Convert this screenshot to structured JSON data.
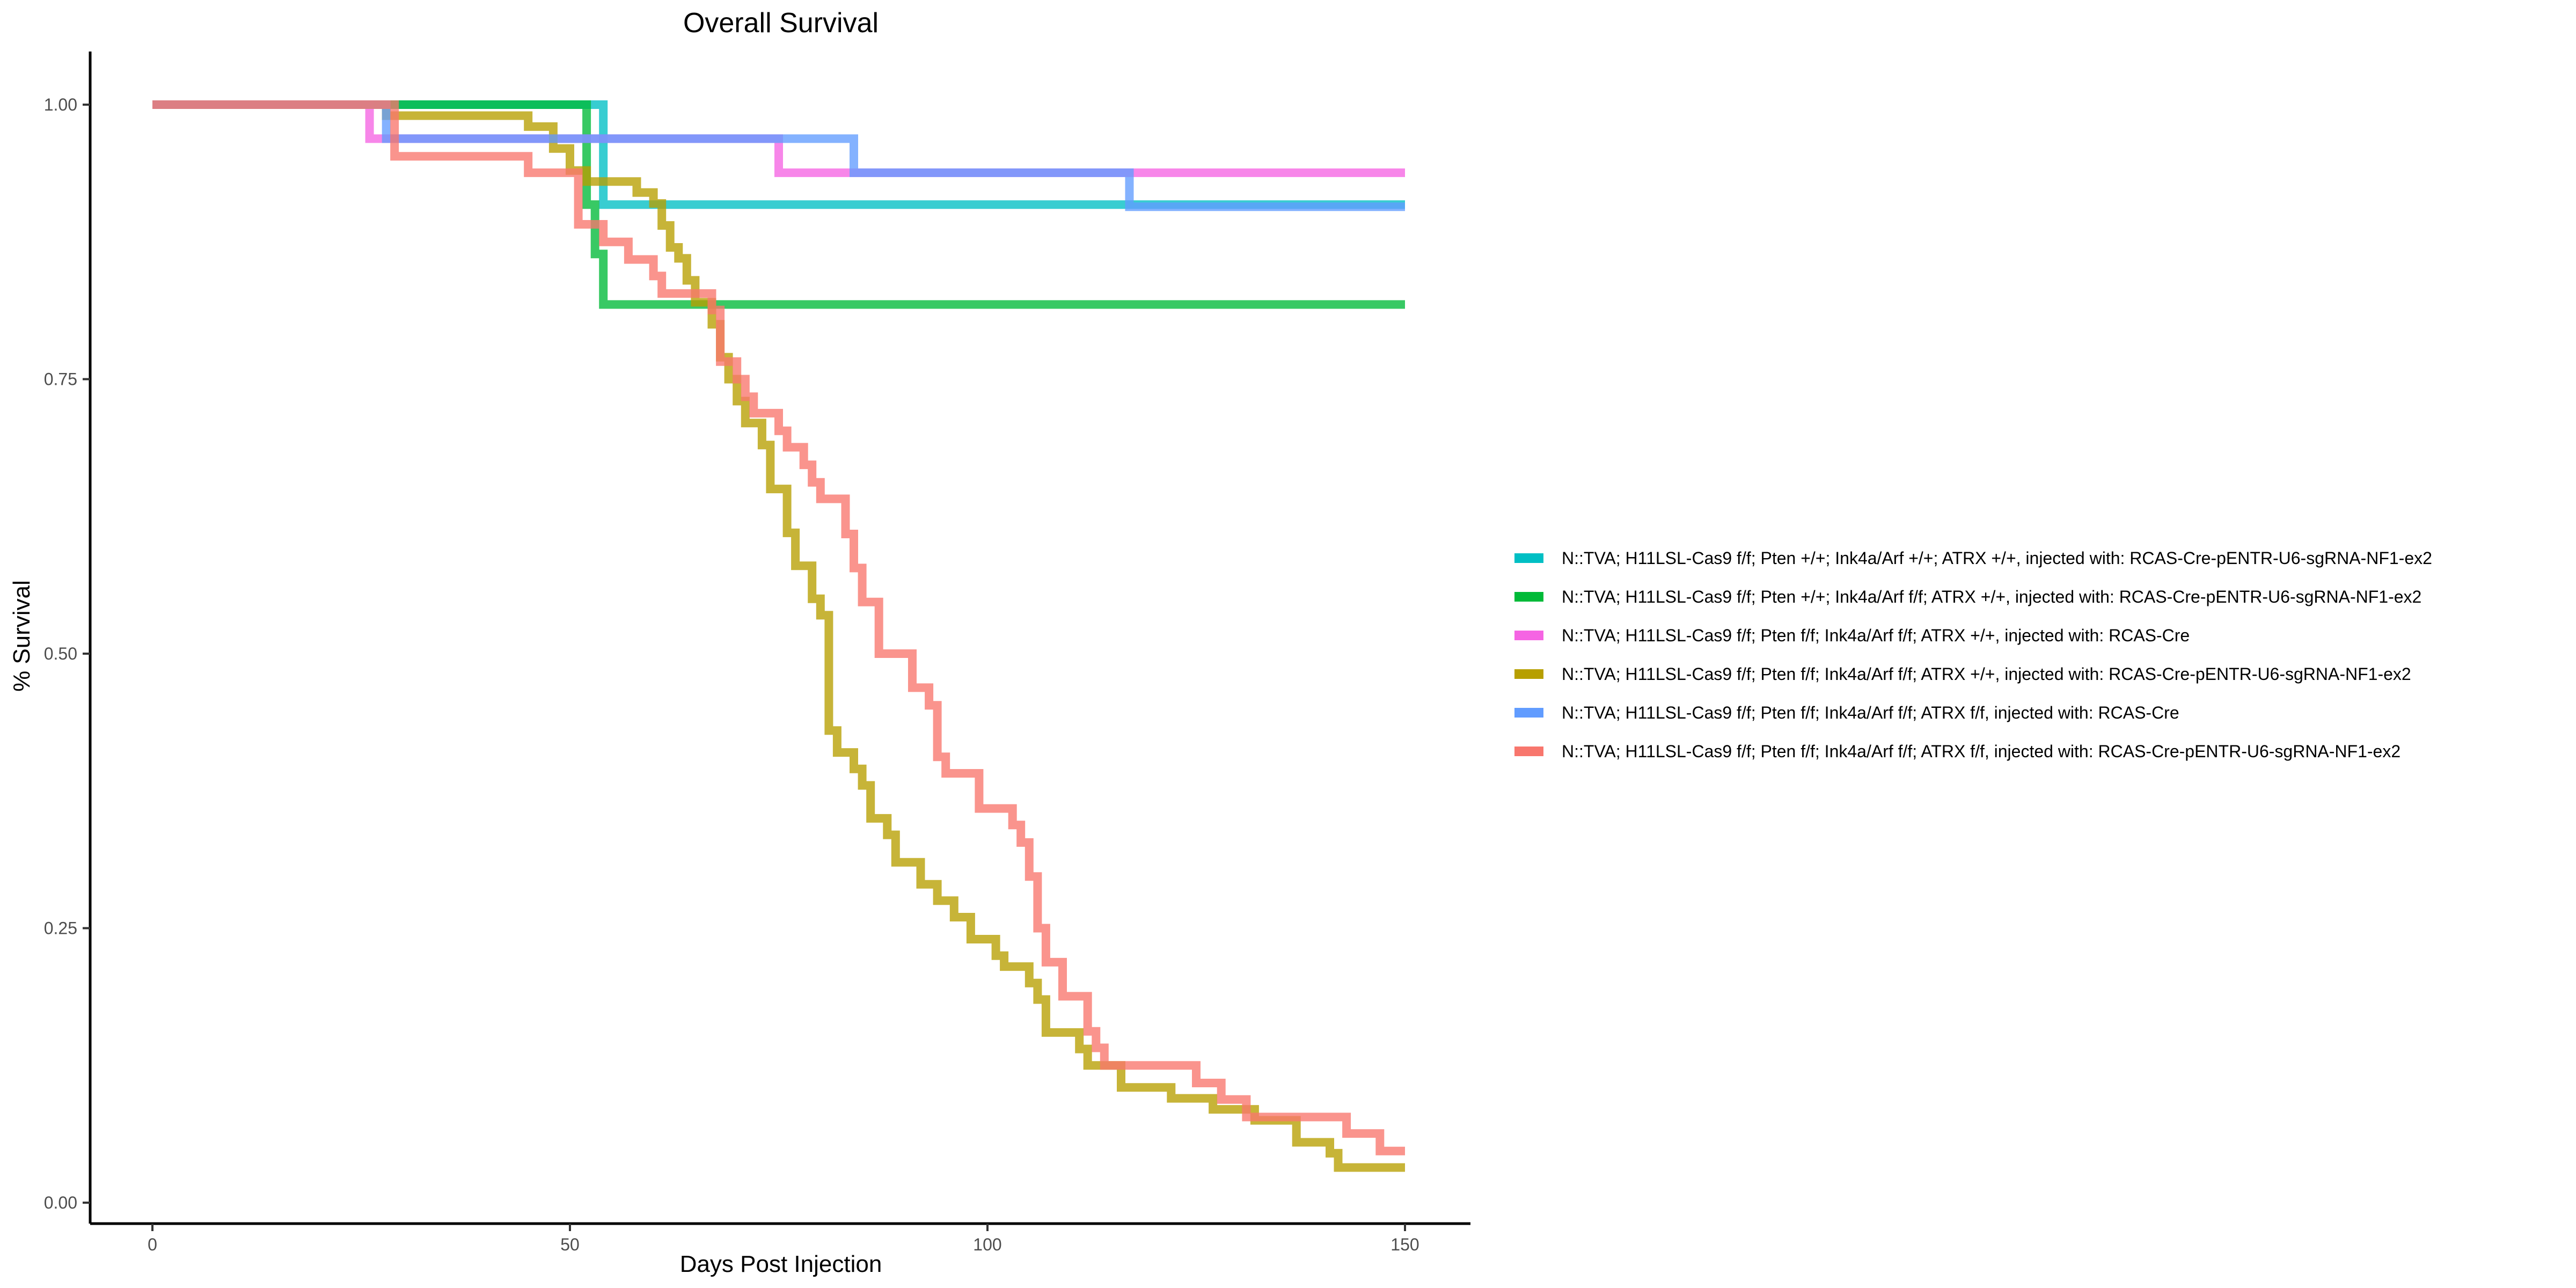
{
  "chart_data": {
    "type": "line",
    "step": true,
    "title": "Overall Survival",
    "xlabel": "Days Post Injection",
    "ylabel": "% Survival",
    "xlim": [
      0,
      150
    ],
    "ylim": [
      0,
      1
    ],
    "x_ticks": [
      0,
      50,
      100,
      150
    ],
    "y_ticks": [
      0,
      0.25,
      0.5,
      0.75,
      1
    ],
    "x_tick_labels": [
      "0",
      "50",
      "100",
      "150"
    ],
    "y_tick_labels": [
      "0.00",
      "0.25",
      "0.50",
      "0.75",
      "1.00"
    ],
    "grid": false,
    "legend_position": "right",
    "series": [
      {
        "name": "N::TVA; H11LSL-Cas9 f/f; Pten +/+; Ink4a/Arf +/+; ATRX +/+, injected with: RCAS-Cre-pENTR-U6-sgRNA-NF1-ex2",
        "color": "#00BFC4",
        "points": [
          [
            0,
            1.0
          ],
          [
            54,
            1.0
          ],
          [
            54,
            0.909
          ],
          [
            150,
            0.909
          ]
        ]
      },
      {
        "name": "N::TVA; H11LSL-Cas9 f/f; Pten +/+; Ink4a/Arf f/f; ATRX +/+, injected with: RCAS-Cre-pENTR-U6-sgRNA-NF1-ex2",
        "color": "#00BA38",
        "points": [
          [
            0,
            1.0
          ],
          [
            52,
            1.0
          ],
          [
            52,
            0.909
          ],
          [
            53,
            0.909
          ],
          [
            53,
            0.864
          ],
          [
            54,
            0.864
          ],
          [
            54,
            0.818
          ],
          [
            150,
            0.818
          ]
        ]
      },
      {
        "name": "N::TVA; H11LSL-Cas9 f/f; Pten f/f; Ink4a/Arf f/f; ATRX +/+, injected with: RCAS-Cre",
        "color": "#F564E3",
        "points": [
          [
            0,
            1.0
          ],
          [
            26,
            1.0
          ],
          [
            26,
            0.969
          ],
          [
            75,
            0.969
          ],
          [
            75,
            0.938
          ],
          [
            150,
            0.938
          ]
        ]
      },
      {
        "name": "N::TVA; H11LSL-Cas9 f/f; Pten f/f; Ink4a/Arf f/f; ATRX +/+, injected with: RCAS-Cre-pENTR-U6-sgRNA-NF1-ex2",
        "color": "#B79F00",
        "points": [
          [
            0,
            1.0
          ],
          [
            28,
            1.0
          ],
          [
            28,
            0.99
          ],
          [
            45,
            0.99
          ],
          [
            45,
            0.98
          ],
          [
            48,
            0.98
          ],
          [
            48,
            0.96
          ],
          [
            50,
            0.96
          ],
          [
            50,
            0.94
          ],
          [
            52,
            0.94
          ],
          [
            52,
            0.93
          ],
          [
            58,
            0.93
          ],
          [
            58,
            0.92
          ],
          [
            60,
            0.92
          ],
          [
            60,
            0.91
          ],
          [
            61,
            0.91
          ],
          [
            61,
            0.89
          ],
          [
            62,
            0.89
          ],
          [
            62,
            0.87
          ],
          [
            63,
            0.87
          ],
          [
            63,
            0.86
          ],
          [
            64,
            0.86
          ],
          [
            64,
            0.84
          ],
          [
            65,
            0.84
          ],
          [
            65,
            0.82
          ],
          [
            67,
            0.82
          ],
          [
            67,
            0.8
          ],
          [
            68,
            0.8
          ],
          [
            68,
            0.77
          ],
          [
            69,
            0.77
          ],
          [
            69,
            0.75
          ],
          [
            70,
            0.75
          ],
          [
            70,
            0.73
          ],
          [
            71,
            0.73
          ],
          [
            71,
            0.71
          ],
          [
            73,
            0.71
          ],
          [
            73,
            0.69
          ],
          [
            74,
            0.69
          ],
          [
            74,
            0.65
          ],
          [
            76,
            0.65
          ],
          [
            76,
            0.61
          ],
          [
            77,
            0.61
          ],
          [
            77,
            0.58
          ],
          [
            79,
            0.58
          ],
          [
            79,
            0.55
          ],
          [
            80,
            0.55
          ],
          [
            80,
            0.535
          ],
          [
            81,
            0.535
          ],
          [
            81,
            0.43
          ],
          [
            82,
            0.43
          ],
          [
            82,
            0.41
          ],
          [
            84,
            0.41
          ],
          [
            84,
            0.395
          ],
          [
            85,
            0.395
          ],
          [
            85,
            0.38
          ],
          [
            86,
            0.38
          ],
          [
            86,
            0.35
          ],
          [
            88,
            0.35
          ],
          [
            88,
            0.335
          ],
          [
            89,
            0.335
          ],
          [
            89,
            0.31
          ],
          [
            92,
            0.31
          ],
          [
            92,
            0.29
          ],
          [
            94,
            0.29
          ],
          [
            94,
            0.275
          ],
          [
            96,
            0.275
          ],
          [
            96,
            0.26
          ],
          [
            98,
            0.26
          ],
          [
            98,
            0.24
          ],
          [
            101,
            0.24
          ],
          [
            101,
            0.225
          ],
          [
            102,
            0.225
          ],
          [
            102,
            0.215
          ],
          [
            105,
            0.215
          ],
          [
            105,
            0.2
          ],
          [
            106,
            0.2
          ],
          [
            106,
            0.185
          ],
          [
            107,
            0.185
          ],
          [
            107,
            0.155
          ],
          [
            111,
            0.155
          ],
          [
            111,
            0.14
          ],
          [
            112,
            0.14
          ],
          [
            112,
            0.125
          ],
          [
            116,
            0.125
          ],
          [
            116,
            0.105
          ],
          [
            122,
            0.105
          ],
          [
            122,
            0.095
          ],
          [
            127,
            0.095
          ],
          [
            127,
            0.085
          ],
          [
            132,
            0.085
          ],
          [
            132,
            0.075
          ],
          [
            137,
            0.075
          ],
          [
            137,
            0.055
          ],
          [
            141,
            0.055
          ],
          [
            141,
            0.045
          ],
          [
            142,
            0.045
          ],
          [
            142,
            0.032
          ],
          [
            150,
            0.032
          ]
        ]
      },
      {
        "name": "N::TVA; H11LSL-Cas9 f/f; Pten f/f; Ink4a/Arf f/f; ATRX f/f, injected with: RCAS-Cre",
        "color": "#619CFF",
        "points": [
          [
            0,
            1.0
          ],
          [
            28,
            1.0
          ],
          [
            28,
            0.969
          ],
          [
            84,
            0.969
          ],
          [
            84,
            0.938
          ],
          [
            117,
            0.938
          ],
          [
            117,
            0.907
          ],
          [
            150,
            0.907
          ]
        ]
      },
      {
        "name": "N::TVA; H11LSL-Cas9 f/f; Pten f/f; Ink4a/Arf f/f; ATRX f/f, injected with: RCAS-Cre-pENTR-U6-sgRNA-NF1-ex2",
        "color": "#F8766D",
        "points": [
          [
            0,
            1.0
          ],
          [
            29,
            1.0
          ],
          [
            29,
            0.953
          ],
          [
            45,
            0.953
          ],
          [
            45,
            0.938
          ],
          [
            51,
            0.938
          ],
          [
            51,
            0.891
          ],
          [
            54,
            0.891
          ],
          [
            54,
            0.875
          ],
          [
            57,
            0.875
          ],
          [
            57,
            0.859
          ],
          [
            60,
            0.859
          ],
          [
            60,
            0.844
          ],
          [
            61,
            0.844
          ],
          [
            61,
            0.828
          ],
          [
            67,
            0.828
          ],
          [
            67,
            0.813
          ],
          [
            68,
            0.813
          ],
          [
            68,
            0.766
          ],
          [
            70,
            0.766
          ],
          [
            70,
            0.75
          ],
          [
            71,
            0.75
          ],
          [
            71,
            0.734
          ],
          [
            72,
            0.734
          ],
          [
            72,
            0.719
          ],
          [
            75,
            0.719
          ],
          [
            75,
            0.703
          ],
          [
            76,
            0.703
          ],
          [
            76,
            0.688
          ],
          [
            78,
            0.688
          ],
          [
            78,
            0.672
          ],
          [
            79,
            0.672
          ],
          [
            79,
            0.656
          ],
          [
            80,
            0.656
          ],
          [
            80,
            0.641
          ],
          [
            83,
            0.641
          ],
          [
            83,
            0.609
          ],
          [
            84,
            0.609
          ],
          [
            84,
            0.578
          ],
          [
            85,
            0.578
          ],
          [
            85,
            0.547
          ],
          [
            87,
            0.547
          ],
          [
            87,
            0.5
          ],
          [
            91,
            0.5
          ],
          [
            91,
            0.469
          ],
          [
            93,
            0.469
          ],
          [
            93,
            0.453
          ],
          [
            94,
            0.453
          ],
          [
            94,
            0.406
          ],
          [
            95,
            0.406
          ],
          [
            95,
            0.391
          ],
          [
            99,
            0.391
          ],
          [
            99,
            0.359
          ],
          [
            103,
            0.359
          ],
          [
            103,
            0.344
          ],
          [
            104,
            0.344
          ],
          [
            104,
            0.328
          ],
          [
            105,
            0.328
          ],
          [
            105,
            0.297
          ],
          [
            106,
            0.297
          ],
          [
            106,
            0.25
          ],
          [
            107,
            0.25
          ],
          [
            107,
            0.219
          ],
          [
            109,
            0.219
          ],
          [
            109,
            0.188
          ],
          [
            112,
            0.188
          ],
          [
            112,
            0.156
          ],
          [
            113,
            0.156
          ],
          [
            113,
            0.141
          ],
          [
            114,
            0.141
          ],
          [
            114,
            0.125
          ],
          [
            125,
            0.125
          ],
          [
            125,
            0.109
          ],
          [
            128,
            0.109
          ],
          [
            128,
            0.094
          ],
          [
            131,
            0.094
          ],
          [
            131,
            0.078
          ],
          [
            143,
            0.078
          ],
          [
            143,
            0.063
          ],
          [
            147,
            0.063
          ],
          [
            147,
            0.047
          ],
          [
            150,
            0.047
          ]
        ]
      }
    ]
  }
}
